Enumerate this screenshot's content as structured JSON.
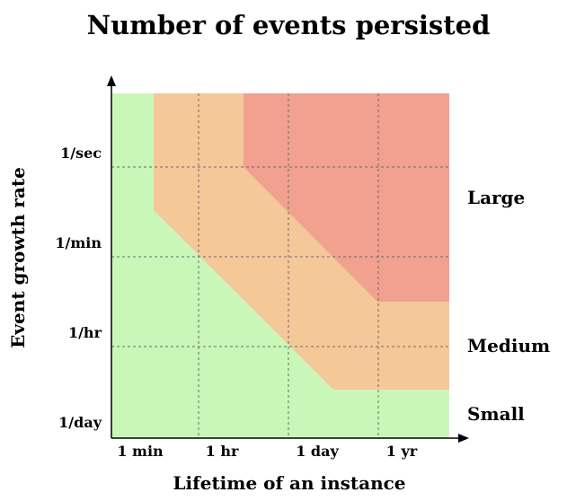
{
  "title": "Number of events persisted",
  "x_axis": {
    "label": "Lifetime of an instance",
    "ticks": [
      "1 min",
      "1 hr",
      "1 day",
      "1 yr"
    ]
  },
  "y_axis": {
    "label": "Event growth rate",
    "ticks": [
      "1/sec",
      "1/min",
      "1/hr",
      "1/day"
    ]
  },
  "zones": [
    {
      "name": "small",
      "label": "Small",
      "color": "#c9f7b8"
    },
    {
      "name": "medium",
      "label": "Medium",
      "color": "#f5c89a"
    },
    {
      "name": "large",
      "label": "Large",
      "color": "#f2a090"
    }
  ],
  "colors": {
    "grid": "#6b6b6b",
    "axis": "#000000"
  }
}
